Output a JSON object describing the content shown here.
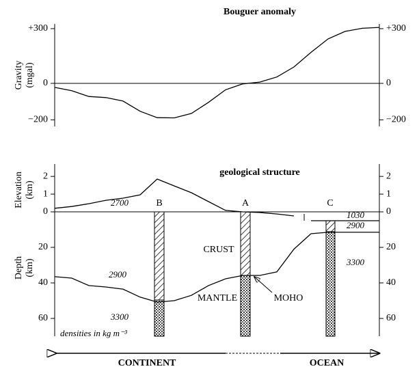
{
  "chart_data": [
    {
      "type": "line",
      "title": "Bouguer anomaly",
      "y_label": [
        "Gravity",
        "(mgal)"
      ],
      "categories": [
        null,
        null,
        null,
        null,
        null,
        null,
        null,
        null,
        null,
        null,
        null,
        null,
        null,
        null,
        null,
        null,
        null,
        null,
        null,
        null
      ],
      "values": [
        -22,
        -40,
        -72,
        -78,
        -97,
        -153,
        -188,
        -189,
        -165,
        -104,
        -35,
        -3,
        7,
        35,
        90,
        170,
        244,
        285,
        302,
        307
      ],
      "color": "#000000",
      "ylim": [
        -236,
        326
      ],
      "yticks": [
        {
          "value": 300,
          "label": "+300"
        },
        0,
        {
          "value": -200,
          "label": "−200"
        }
      ]
    },
    {
      "type": "line",
      "title": "geological structure",
      "y_label": [
        "Elevation",
        "(km)"
      ],
      "categories": [
        null,
        null,
        null,
        null,
        null,
        null,
        null,
        null,
        null,
        null,
        null,
        null,
        null,
        null,
        null,
        null,
        null,
        null,
        null,
        null
      ],
      "values": [
        0.2,
        0.3,
        0.46,
        0.65,
        0.77,
        0.96,
        1.85,
        1.46,
        1.08,
        0.58,
        0.08,
        0,
        -0.04,
        -0.12,
        -0.23,
        null,
        null,
        null,
        null,
        null
      ],
      "color": "#000000",
      "ylim": [
        0,
        2.7
      ],
      "yticks": [
        0,
        1,
        2
      ]
    },
    {
      "type": "line",
      "y_label": [
        "Depth",
        "(km)"
      ],
      "categories": [
        null,
        null,
        null,
        null,
        null,
        null,
        null,
        null,
        null,
        null,
        null,
        null,
        null,
        null,
        null,
        null,
        null,
        null,
        null,
        null
      ],
      "series": [
        {
          "color": "#000000",
          "values": [
            36.5,
            37.3,
            41.5,
            42.3,
            43.5,
            48,
            50.8,
            50,
            47,
            41.5,
            37.7,
            35.8,
            35.8,
            33.8,
            21,
            12.3,
            11.5,
            11.5,
            11.5,
            11.5
          ]
        },
        {
          "color": "#000000",
          "values": [
            null,
            null,
            null,
            null,
            null,
            null,
            null,
            null,
            null,
            null,
            null,
            null,
            null,
            null,
            null,
            5,
            5,
            5,
            5,
            5
          ]
        }
      ],
      "ylim": [
        70,
        0
      ],
      "yticks": [
        20,
        40,
        60
      ],
      "columns": [
        "B",
        "A",
        "C"
      ],
      "densities": [
        "2700",
        "2900",
        "3300",
        "1030",
        "2900",
        "3300"
      ],
      "layers": [
        "CRUST",
        "MANTLE",
        "MOHO"
      ],
      "note": "densities in kg m⁻³"
    }
  ],
  "regions": [
    "CONTINENT",
    "OCEAN"
  ]
}
